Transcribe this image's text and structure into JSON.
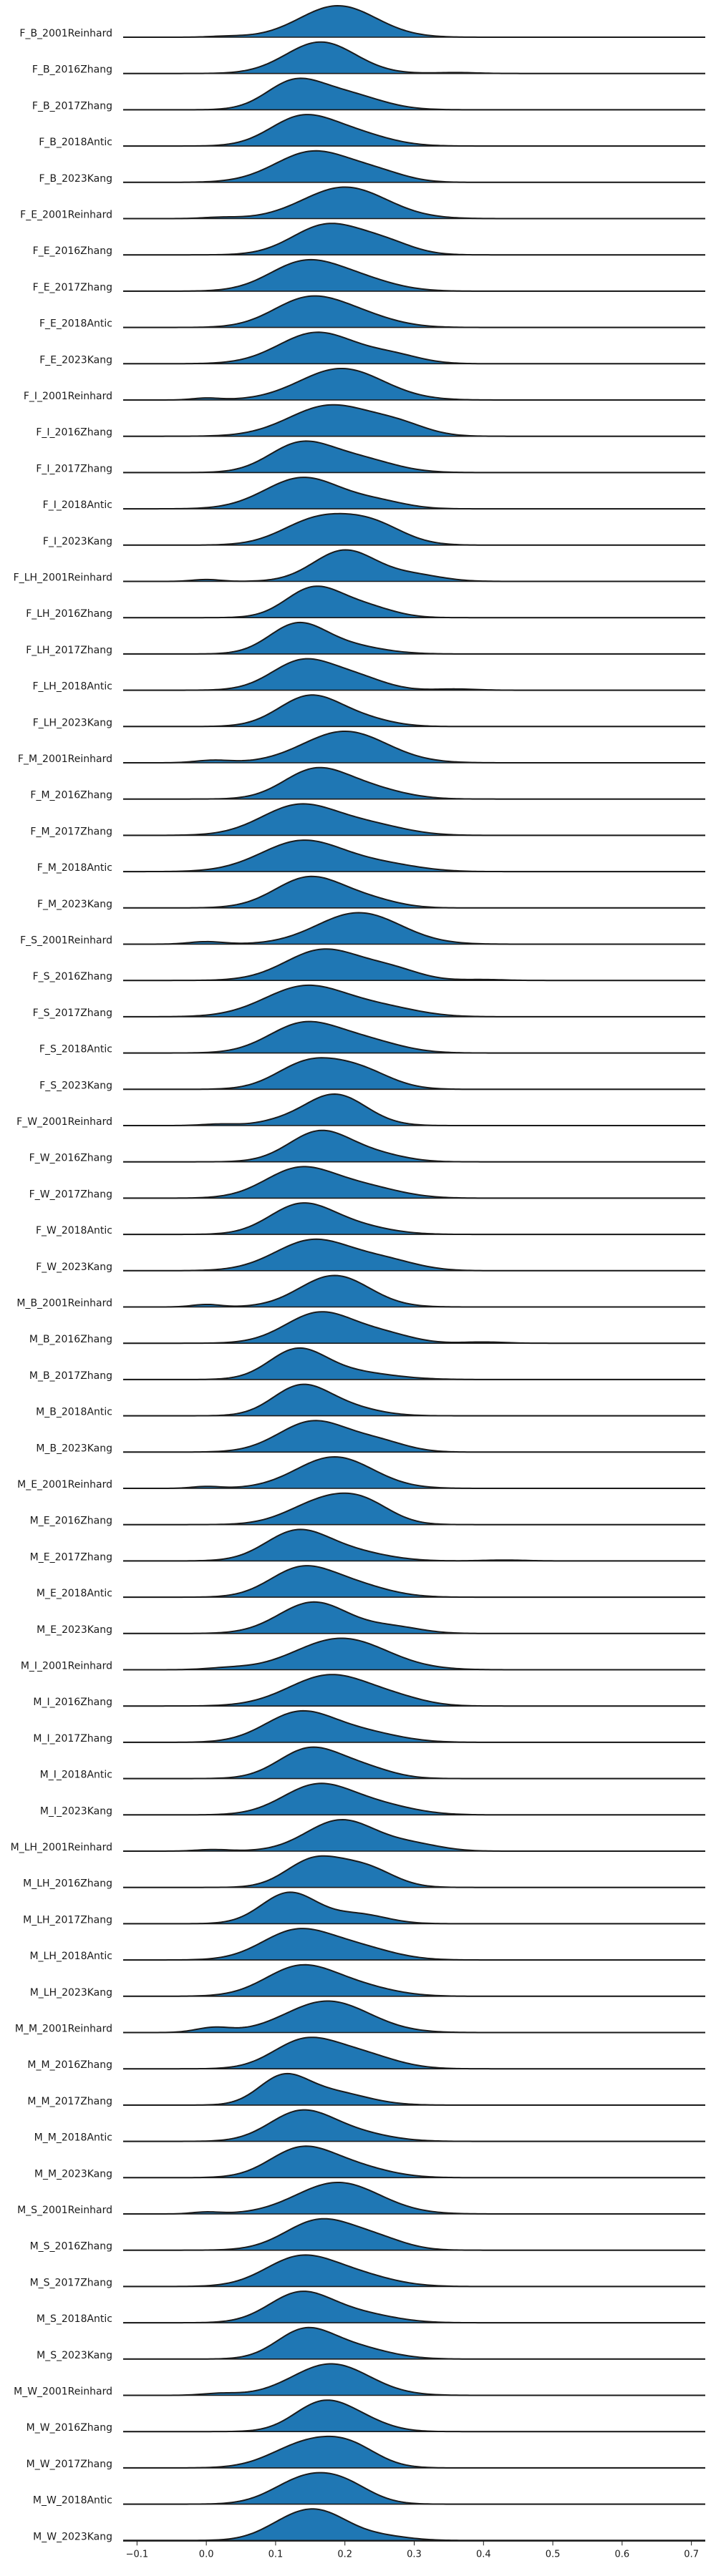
{
  "chart_data": {
    "type": "ridgeline",
    "title": "",
    "xlabel": "",
    "ylabel": "",
    "xlim": [
      -0.12,
      0.72
    ],
    "xticks": [
      -0.1,
      0.0,
      0.1,
      0.2,
      0.3,
      0.4,
      0.5,
      0.6,
      0.7
    ],
    "xtick_labels": [
      "−0.1",
      "0.0",
      "0.1",
      "0.2",
      "0.3",
      "0.4",
      "0.5",
      "0.6",
      "0.7"
    ],
    "fill_color": "#1f77b4",
    "line_color": "#1a1a1a",
    "series": [
      {
        "name": "F_B_2001Reinhard",
        "peaks": [
          [
            0.19,
            0.055,
            1.0
          ],
          [
            0.03,
            0.025,
            0.03
          ]
        ]
      },
      {
        "name": "F_B_2016Zhang",
        "peaks": [
          [
            0.165,
            0.05,
            1.0
          ],
          [
            0.36,
            0.03,
            0.03
          ]
        ]
      },
      {
        "name": "F_B_2017Zhang",
        "peaks": [
          [
            0.125,
            0.04,
            0.9
          ],
          [
            0.2,
            0.05,
            0.55
          ]
        ]
      },
      {
        "name": "F_B_2018Antic",
        "peaks": [
          [
            0.135,
            0.045,
            0.95
          ],
          [
            0.21,
            0.05,
            0.45
          ]
        ]
      },
      {
        "name": "F_B_2023Kang",
        "peaks": [
          [
            0.155,
            0.055,
            1.0
          ],
          [
            0.25,
            0.04,
            0.25
          ]
        ]
      },
      {
        "name": "F_E_2001Reinhard",
        "peaks": [
          [
            0.2,
            0.06,
            1.0
          ],
          [
            0.02,
            0.025,
            0.04
          ]
        ]
      },
      {
        "name": "F_E_2016Zhang",
        "peaks": [
          [
            0.175,
            0.05,
            1.0
          ],
          [
            0.26,
            0.04,
            0.35
          ]
        ]
      },
      {
        "name": "F_E_2017Zhang",
        "peaks": [
          [
            0.14,
            0.05,
            1.0
          ],
          [
            0.22,
            0.05,
            0.4
          ]
        ]
      },
      {
        "name": "F_E_2018Antic",
        "peaks": [
          [
            0.145,
            0.05,
            1.0
          ],
          [
            0.22,
            0.05,
            0.4
          ]
        ]
      },
      {
        "name": "F_E_2023Kang",
        "peaks": [
          [
            0.16,
            0.055,
            1.0
          ],
          [
            0.27,
            0.04,
            0.25
          ]
        ]
      },
      {
        "name": "F_I_2001Reinhard",
        "peaks": [
          [
            0.195,
            0.06,
            1.0
          ],
          [
            0.0,
            0.02,
            0.06
          ]
        ]
      },
      {
        "name": "F_I_2016Zhang",
        "peaks": [
          [
            0.18,
            0.06,
            1.0
          ],
          [
            0.28,
            0.04,
            0.3
          ]
        ]
      },
      {
        "name": "F_I_2017Zhang",
        "peaks": [
          [
            0.135,
            0.045,
            0.95
          ],
          [
            0.22,
            0.05,
            0.45
          ]
        ]
      },
      {
        "name": "F_I_2018Antic",
        "peaks": [
          [
            0.14,
            0.055,
            1.0
          ],
          [
            0.25,
            0.04,
            0.2
          ]
        ]
      },
      {
        "name": "F_I_2023Kang",
        "peaks": [
          [
            0.16,
            0.05,
            0.9
          ],
          [
            0.24,
            0.045,
            0.7
          ]
        ]
      },
      {
        "name": "F_LH_2001Reinhard",
        "peaks": [
          [
            0.2,
            0.045,
            1.0
          ],
          [
            0.0,
            0.02,
            0.06
          ],
          [
            0.3,
            0.04,
            0.2
          ]
        ]
      },
      {
        "name": "F_LH_2016Zhang",
        "peaks": [
          [
            0.155,
            0.04,
            1.0
          ],
          [
            0.23,
            0.04,
            0.35
          ]
        ]
      },
      {
        "name": "F_LH_2017Zhang",
        "peaks": [
          [
            0.13,
            0.04,
            1.0
          ],
          [
            0.2,
            0.05,
            0.3
          ]
        ]
      },
      {
        "name": "F_LH_2018Antic",
        "peaks": [
          [
            0.14,
            0.045,
            0.95
          ],
          [
            0.22,
            0.04,
            0.35
          ],
          [
            0.36,
            0.03,
            0.04
          ]
        ]
      },
      {
        "name": "F_LH_2023Kang",
        "peaks": [
          [
            0.15,
            0.045,
            1.0
          ],
          [
            0.23,
            0.04,
            0.2
          ]
        ]
      },
      {
        "name": "F_M_2001Reinhard",
        "peaks": [
          [
            0.2,
            0.06,
            1.0
          ],
          [
            0.01,
            0.025,
            0.08
          ]
        ]
      },
      {
        "name": "F_M_2016Zhang",
        "peaks": [
          [
            0.155,
            0.045,
            1.0
          ],
          [
            0.23,
            0.05,
            0.4
          ]
        ]
      },
      {
        "name": "F_M_2017Zhang",
        "peaks": [
          [
            0.135,
            0.055,
            1.0
          ],
          [
            0.24,
            0.05,
            0.3
          ]
        ]
      },
      {
        "name": "F_M_2018Antic",
        "peaks": [
          [
            0.14,
            0.06,
            1.0
          ],
          [
            0.26,
            0.05,
            0.2
          ]
        ]
      },
      {
        "name": "F_M_2023Kang",
        "peaks": [
          [
            0.15,
            0.05,
            1.0
          ],
          [
            0.24,
            0.04,
            0.2
          ]
        ]
      },
      {
        "name": "F_S_2001Reinhard",
        "peaks": [
          [
            0.22,
            0.06,
            1.0
          ],
          [
            0.0,
            0.025,
            0.08
          ]
        ]
      },
      {
        "name": "F_S_2016Zhang",
        "peaks": [
          [
            0.17,
            0.055,
            1.0
          ],
          [
            0.27,
            0.04,
            0.3
          ],
          [
            0.4,
            0.03,
            0.03
          ]
        ]
      },
      {
        "name": "F_S_2017Zhang",
        "peaks": [
          [
            0.145,
            0.06,
            1.0
          ],
          [
            0.26,
            0.05,
            0.25
          ]
        ]
      },
      {
        "name": "F_S_2018Antic",
        "peaks": [
          [
            0.14,
            0.05,
            1.0
          ],
          [
            0.23,
            0.05,
            0.4
          ]
        ]
      },
      {
        "name": "F_S_2023Kang",
        "peaks": [
          [
            0.145,
            0.045,
            1.0
          ],
          [
            0.22,
            0.045,
            0.75
          ]
        ]
      },
      {
        "name": "F_W_2001Reinhard",
        "peaks": [
          [
            0.185,
            0.045,
            1.0
          ],
          [
            0.02,
            0.025,
            0.05
          ],
          [
            0.1,
            0.03,
            0.08
          ]
        ]
      },
      {
        "name": "F_W_2016Zhang",
        "peaks": [
          [
            0.165,
            0.045,
            1.0
          ],
          [
            0.25,
            0.04,
            0.2
          ]
        ]
      },
      {
        "name": "F_W_2017Zhang",
        "peaks": [
          [
            0.135,
            0.05,
            1.0
          ],
          [
            0.23,
            0.05,
            0.35
          ]
        ]
      },
      {
        "name": "F_W_2018Antic",
        "peaks": [
          [
            0.135,
            0.045,
            1.0
          ],
          [
            0.21,
            0.05,
            0.3
          ]
        ]
      },
      {
        "name": "F_W_2023Kang",
        "peaks": [
          [
            0.155,
            0.055,
            1.0
          ],
          [
            0.26,
            0.045,
            0.3
          ]
        ]
      },
      {
        "name": "M_B_2001Reinhard",
        "peaks": [
          [
            0.185,
            0.05,
            1.0
          ],
          [
            0.0,
            0.02,
            0.08
          ]
        ]
      },
      {
        "name": "M_B_2016Zhang",
        "peaks": [
          [
            0.165,
            0.05,
            1.0
          ],
          [
            0.26,
            0.04,
            0.25
          ],
          [
            0.4,
            0.03,
            0.04
          ]
        ]
      },
      {
        "name": "M_B_2017Zhang",
        "peaks": [
          [
            0.13,
            0.04,
            1.0
          ],
          [
            0.2,
            0.06,
            0.3
          ]
        ]
      },
      {
        "name": "M_B_2018Antic",
        "peaks": [
          [
            0.135,
            0.04,
            1.0
          ],
          [
            0.2,
            0.045,
            0.3
          ]
        ]
      },
      {
        "name": "M_B_2023Kang",
        "peaks": [
          [
            0.155,
            0.05,
            1.0
          ],
          [
            0.25,
            0.04,
            0.3
          ]
        ]
      },
      {
        "name": "M_E_2001Reinhard",
        "peaks": [
          [
            0.185,
            0.055,
            1.0
          ],
          [
            0.0,
            0.02,
            0.06
          ]
        ]
      },
      {
        "name": "M_E_2016Zhang",
        "peaks": [
          [
            0.17,
            0.05,
            0.95
          ],
          [
            0.23,
            0.04,
            0.65
          ]
        ]
      },
      {
        "name": "M_E_2017Zhang",
        "peaks": [
          [
            0.13,
            0.045,
            1.0
          ],
          [
            0.21,
            0.05,
            0.3
          ],
          [
            0.43,
            0.03,
            0.03
          ]
        ]
      },
      {
        "name": "M_E_2018Antic",
        "peaks": [
          [
            0.135,
            0.045,
            1.0
          ],
          [
            0.21,
            0.05,
            0.45
          ]
        ]
      },
      {
        "name": "M_E_2023Kang",
        "peaks": [
          [
            0.155,
            0.05,
            1.0
          ],
          [
            0.27,
            0.04,
            0.2
          ]
        ]
      },
      {
        "name": "M_I_2001Reinhard",
        "peaks": [
          [
            0.195,
            0.065,
            1.0
          ],
          [
            0.03,
            0.03,
            0.05
          ]
        ]
      },
      {
        "name": "M_I_2016Zhang",
        "peaks": [
          [
            0.18,
            0.06,
            1.0
          ],
          [
            0.28,
            0.04,
            0.15
          ]
        ]
      },
      {
        "name": "M_I_2017Zhang",
        "peaks": [
          [
            0.135,
            0.05,
            1.0
          ],
          [
            0.23,
            0.05,
            0.3
          ]
        ]
      },
      {
        "name": "M_I_2018Antic",
        "peaks": [
          [
            0.15,
            0.045,
            1.0
          ],
          [
            0.23,
            0.04,
            0.3
          ]
        ]
      },
      {
        "name": "M_I_2023Kang",
        "peaks": [
          [
            0.16,
            0.05,
            1.0
          ],
          [
            0.25,
            0.05,
            0.3
          ]
        ]
      },
      {
        "name": "M_LH_2001Reinhard",
        "peaks": [
          [
            0.195,
            0.05,
            1.0
          ],
          [
            0.01,
            0.025,
            0.05
          ],
          [
            0.3,
            0.04,
            0.2
          ]
        ]
      },
      {
        "name": "M_LH_2016Zhang",
        "peaks": [
          [
            0.155,
            0.04,
            1.0
          ],
          [
            0.23,
            0.04,
            0.7
          ]
        ]
      },
      {
        "name": "M_LH_2017Zhang",
        "peaks": [
          [
            0.12,
            0.04,
            1.0
          ],
          [
            0.22,
            0.04,
            0.3
          ]
        ]
      },
      {
        "name": "M_LH_2018Antic",
        "peaks": [
          [
            0.13,
            0.05,
            1.0
          ],
          [
            0.22,
            0.05,
            0.4
          ]
        ]
      },
      {
        "name": "M_LH_2023Kang",
        "peaks": [
          [
            0.135,
            0.05,
            1.0
          ],
          [
            0.22,
            0.05,
            0.3
          ]
        ]
      },
      {
        "name": "M_M_2001Reinhard",
        "peaks": [
          [
            0.175,
            0.06,
            1.0
          ],
          [
            0.01,
            0.025,
            0.15
          ]
        ]
      },
      {
        "name": "M_M_2016Zhang",
        "peaks": [
          [
            0.14,
            0.045,
            1.0
          ],
          [
            0.22,
            0.05,
            0.55
          ]
        ]
      },
      {
        "name": "M_M_2017Zhang",
        "peaks": [
          [
            0.11,
            0.035,
            1.0
          ],
          [
            0.18,
            0.05,
            0.5
          ]
        ]
      },
      {
        "name": "M_M_2018Antic",
        "peaks": [
          [
            0.135,
            0.045,
            1.0
          ],
          [
            0.21,
            0.05,
            0.3
          ]
        ]
      },
      {
        "name": "M_M_2023Kang",
        "peaks": [
          [
            0.135,
            0.045,
            1.0
          ],
          [
            0.21,
            0.05,
            0.4
          ]
        ]
      },
      {
        "name": "M_S_2001Reinhard",
        "peaks": [
          [
            0.19,
            0.06,
            1.0
          ],
          [
            0.0,
            0.02,
            0.06
          ]
        ]
      },
      {
        "name": "M_S_2016Zhang",
        "peaks": [
          [
            0.165,
            0.05,
            1.0
          ],
          [
            0.25,
            0.04,
            0.3
          ]
        ]
      },
      {
        "name": "M_S_2017Zhang",
        "peaks": [
          [
            0.135,
            0.05,
            1.0
          ],
          [
            0.22,
            0.05,
            0.35
          ]
        ]
      },
      {
        "name": "M_S_2018Antic",
        "peaks": [
          [
            0.135,
            0.045,
            1.0
          ],
          [
            0.22,
            0.05,
            0.3
          ]
        ]
      },
      {
        "name": "M_S_2023Kang",
        "peaks": [
          [
            0.14,
            0.04,
            1.0
          ],
          [
            0.21,
            0.05,
            0.45
          ]
        ]
      },
      {
        "name": "M_W_2001Reinhard",
        "peaks": [
          [
            0.18,
            0.055,
            1.0
          ],
          [
            0.02,
            0.025,
            0.06
          ]
        ]
      },
      {
        "name": "M_W_2016Zhang",
        "peaks": [
          [
            0.165,
            0.04,
            1.0
          ],
          [
            0.22,
            0.04,
            0.4
          ]
        ]
      },
      {
        "name": "M_W_2017Zhang",
        "peaks": [
          [
            0.145,
            0.05,
            1.0
          ],
          [
            0.21,
            0.04,
            0.7
          ]
        ]
      },
      {
        "name": "M_W_2018Antic",
        "peaks": [
          [
            0.14,
            0.045,
            1.0
          ],
          [
            0.2,
            0.04,
            0.7
          ]
        ]
      },
      {
        "name": "M_W_2023Kang",
        "peaks": [
          [
            0.17,
            0.04,
            1.0
          ],
          [
            0.12,
            0.04,
            0.7
          ],
          [
            0.25,
            0.04,
            0.2
          ]
        ]
      }
    ]
  }
}
